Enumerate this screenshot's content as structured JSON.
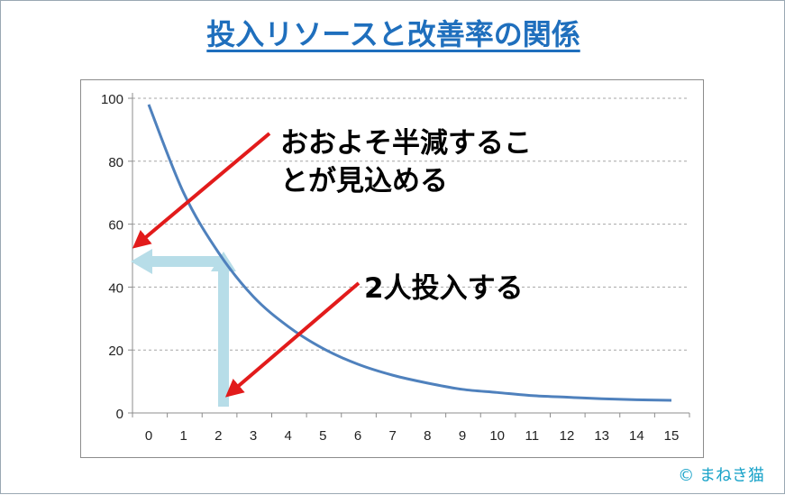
{
  "title": "投入リソースと改善率の関係",
  "annotations": {
    "halve": "おおよそ半減すること が見込める",
    "halve_line1": "おおよそ半減するこ",
    "halve_line2": "とが見込める",
    "two_people": "2人投入する"
  },
  "copyright": "© まねき猫",
  "colors": {
    "title": "#1f6fbd",
    "curve": "#4f81bd",
    "arrows": "#e21b1b",
    "guide": "#b7dde8",
    "copyright": "#1aa3c9"
  },
  "chart_data": {
    "type": "line",
    "title": "",
    "xlabel": "",
    "ylabel": "",
    "x": [
      0,
      1,
      2,
      3,
      4,
      5,
      6,
      7,
      8,
      9,
      10,
      11,
      12,
      13,
      14,
      15
    ],
    "series": [
      {
        "values": [
          98,
          70,
          51,
          37,
          27.5,
          20.5,
          15.5,
          12,
          9.5,
          7.5,
          6.5,
          5.5,
          5,
          4.5,
          4.2,
          4
        ]
      }
    ],
    "xticks": [
      "0",
      "1",
      "2",
      "3",
      "4",
      "5",
      "6",
      "7",
      "8",
      "9",
      "10",
      "11",
      "12",
      "13",
      "14",
      "15"
    ],
    "yticks": [
      "0",
      "20",
      "40",
      "60",
      "80",
      "100"
    ],
    "xlim": [
      0,
      15
    ],
    "ylim": [
      0,
      100
    ],
    "grid": "horizontal dashed",
    "legend": "none"
  }
}
